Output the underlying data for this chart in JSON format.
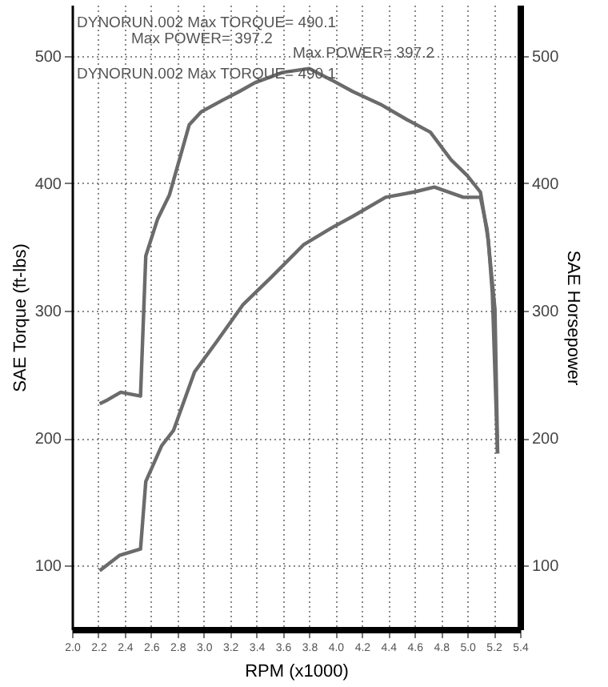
{
  "chart_data": {
    "type": "line",
    "xlabel": "RPM (x1000)",
    "ylabel": "SAE Torque (ft-lbs)",
    "y2label": "SAE Horsepower",
    "annotations": [
      "DYNORUN.002 Max TORQUE= 490.1",
      "Max POWER= 397.2",
      "Max POWER= 397.2",
      "DYNORUN.002 Max TORQUE= 490.1"
    ],
    "xlim": [
      2.0,
      5.4
    ],
    "xticks": [
      {
        "value": 2,
        "label": "2.0"
      },
      2.2,
      2.4,
      2.6,
      2.8,
      {
        "value": 3,
        "label": "3.0"
      },
      3.2,
      3.4,
      3.6,
      3.8,
      {
        "value": 4,
        "label": "4.0"
      },
      4.2,
      4.4,
      4.6,
      4.8,
      {
        "value": 5,
        "label": "5.0"
      },
      5.2,
      5.4
    ],
    "ylim": [
      50,
      540
    ],
    "yticks": [
      100,
      200,
      300,
      400,
      500
    ],
    "y2lim": [
      50,
      540
    ],
    "y2ticks": [
      100,
      200,
      300,
      400,
      500
    ],
    "grid": true,
    "line_style": "solid",
    "marker": "none",
    "series": [
      {
        "color": "#6b6b6b",
        "x": [
          2.21,
          2.27,
          2.37,
          2.52,
          2.56,
          2.65,
          2.74,
          2.89,
          2.98,
          3.14,
          3.27,
          3.39,
          3.6,
          3.8,
          3.97,
          4.13,
          4.34,
          4.54,
          4.72,
          4.88,
          5.0,
          5.1,
          5.16,
          5.19,
          5.23
        ],
        "values": [
          227,
          230,
          236,
          233,
          343,
          372,
          391,
          446,
          456,
          465,
          472,
          479,
          487,
          490,
          481,
          472,
          462,
          450,
          440,
          418,
          406,
          393,
          355,
          314,
          188
        ]
      },
      {
        "color": "#6b6b6b",
        "axis": "y2",
        "x": [
          2.21,
          2.36,
          2.52,
          2.56,
          2.68,
          2.77,
          2.93,
          3.1,
          3.3,
          3.51,
          3.76,
          3.97,
          4.13,
          4.38,
          4.59,
          4.75,
          4.97,
          5.1,
          5.15,
          5.21,
          5.23
        ],
        "values": [
          96,
          108,
          113,
          166,
          194,
          206,
          252,
          276,
          305,
          326,
          352,
          365,
          374,
          389,
          393,
          397,
          389,
          389,
          364,
          301,
          188
        ]
      }
    ]
  }
}
